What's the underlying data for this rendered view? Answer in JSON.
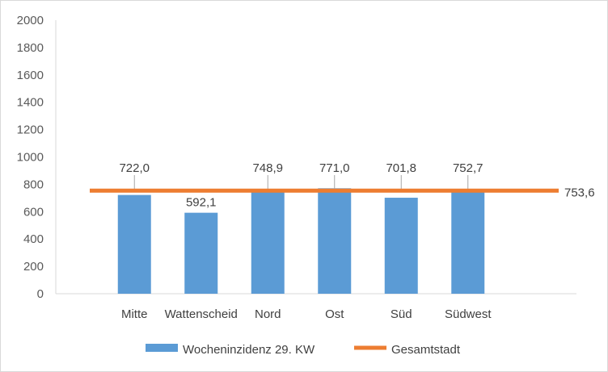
{
  "chart_data": {
    "type": "bar",
    "title": "",
    "xlabel": "",
    "ylabel": "",
    "categories": [
      "Mitte",
      "Wattenscheid",
      "Nord",
      "Ost",
      "Süd",
      "Südwest"
    ],
    "series": [
      {
        "name": "Wocheninzidenz 29. KW",
        "type": "bar",
        "color": "#5b9bd5",
        "values": [
          722.0,
          592.1,
          748.9,
          771.0,
          701.8,
          752.7
        ],
        "labels": [
          "722,0",
          "592,1",
          "748,9",
          "771,0",
          "701,8",
          "752,7"
        ]
      },
      {
        "name": "Gesamtstadt",
        "type": "line",
        "color": "#ed7d31",
        "value": 753.6,
        "label": "753,6"
      }
    ],
    "ylim": [
      0,
      2000
    ],
    "yticks": [
      0,
      200,
      400,
      600,
      800,
      1000,
      1200,
      1400,
      1600,
      1800,
      2000
    ],
    "grid": false,
    "legend_position": "bottom"
  }
}
